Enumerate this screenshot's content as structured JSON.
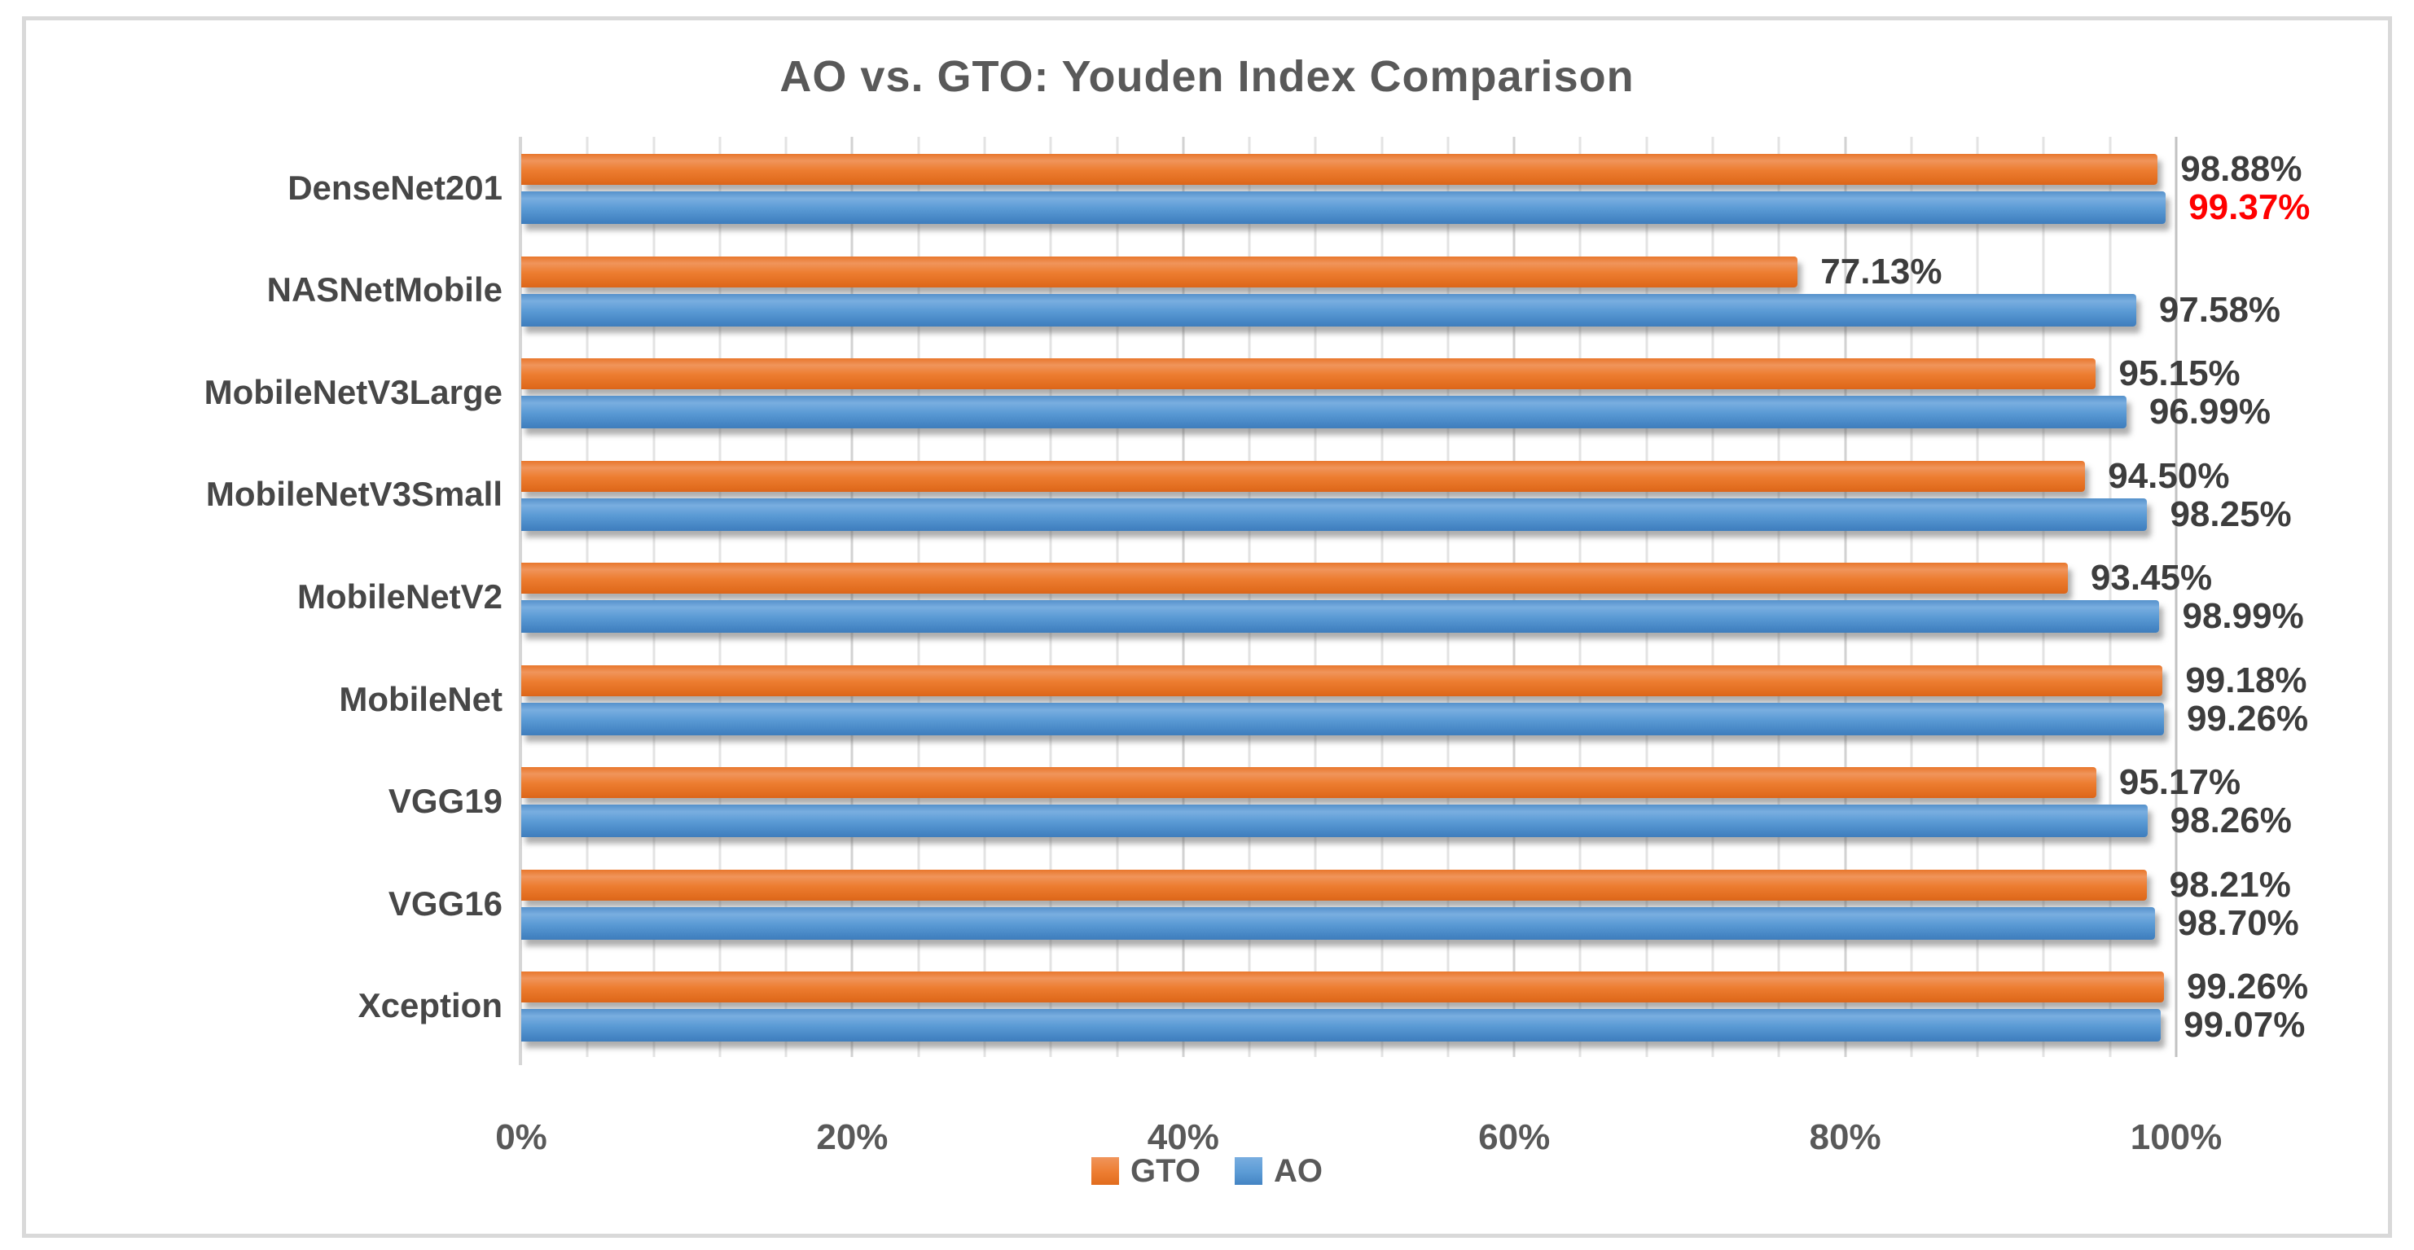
{
  "chart_data": {
    "type": "bar",
    "orientation": "horizontal",
    "title": "AO vs. GTO: Youden Index Comparison",
    "categories": [
      "DenseNet201",
      "NASNetMobile",
      "MobileNetV3Large",
      "MobileNetV3Small",
      "MobileNetV2",
      "MobileNet",
      "VGG19",
      "VGG16",
      "Xception"
    ],
    "series": [
      {
        "name": "GTO",
        "color": "#ED7D31",
        "values": [
          98.88,
          77.13,
          95.15,
          94.5,
          93.45,
          99.18,
          95.17,
          98.21,
          99.26
        ],
        "labels": [
          "98.88%",
          "77.13%",
          "95.15%",
          "94.50%",
          "93.45%",
          "99.18%",
          "95.17%",
          "98.21%",
          "99.26%"
        ]
      },
      {
        "name": "AO",
        "color": "#5B9BD5",
        "values": [
          99.37,
          97.58,
          96.99,
          98.25,
          98.99,
          99.26,
          98.26,
          98.7,
          99.07
        ],
        "labels": [
          "99.37%",
          "97.58%",
          "96.99%",
          "98.25%",
          "98.99%",
          "99.26%",
          "98.26%",
          "98.70%",
          "99.07%"
        ]
      }
    ],
    "highlight_label": {
      "series": "AO",
      "category": "DenseNet201",
      "color": "#FF0000"
    },
    "x_ticks": [
      "0%",
      "20%",
      "40%",
      "60%",
      "80%",
      "100%"
    ],
    "xlim": [
      0,
      100
    ],
    "grid": {
      "minor_step_pct": 4,
      "major_step_pct": 20,
      "on": true
    },
    "legend_position": "bottom",
    "label_color": "#3D3D3D",
    "axis_color": "#595959",
    "title_color": "#595959",
    "border_color": "#D9D9D9"
  }
}
